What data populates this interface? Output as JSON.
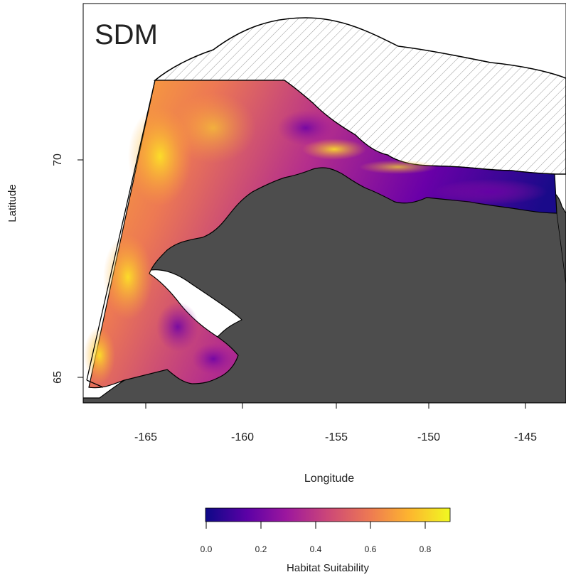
{
  "panel_label": "SDM",
  "axes": {
    "xlabel": "Longitude",
    "ylabel": "Latitude",
    "x_ticks": [
      "-165",
      "-160",
      "-155",
      "-150",
      "-145"
    ],
    "y_ticks": [
      "70",
      "65"
    ]
  },
  "legend": {
    "title": "Habitat Suitability",
    "ticks": [
      "0.0",
      "0.2",
      "0.4",
      "0.6",
      "0.8"
    ],
    "colors": [
      "#0d0887",
      "#5c01a6",
      "#9c179e",
      "#cc4778",
      "#ed7953",
      "#fdb42f",
      "#f0f921"
    ]
  },
  "colors": {
    "land": "#4d4d4d",
    "hatch_line": "#9a9a9a",
    "outline": "#000000"
  }
}
